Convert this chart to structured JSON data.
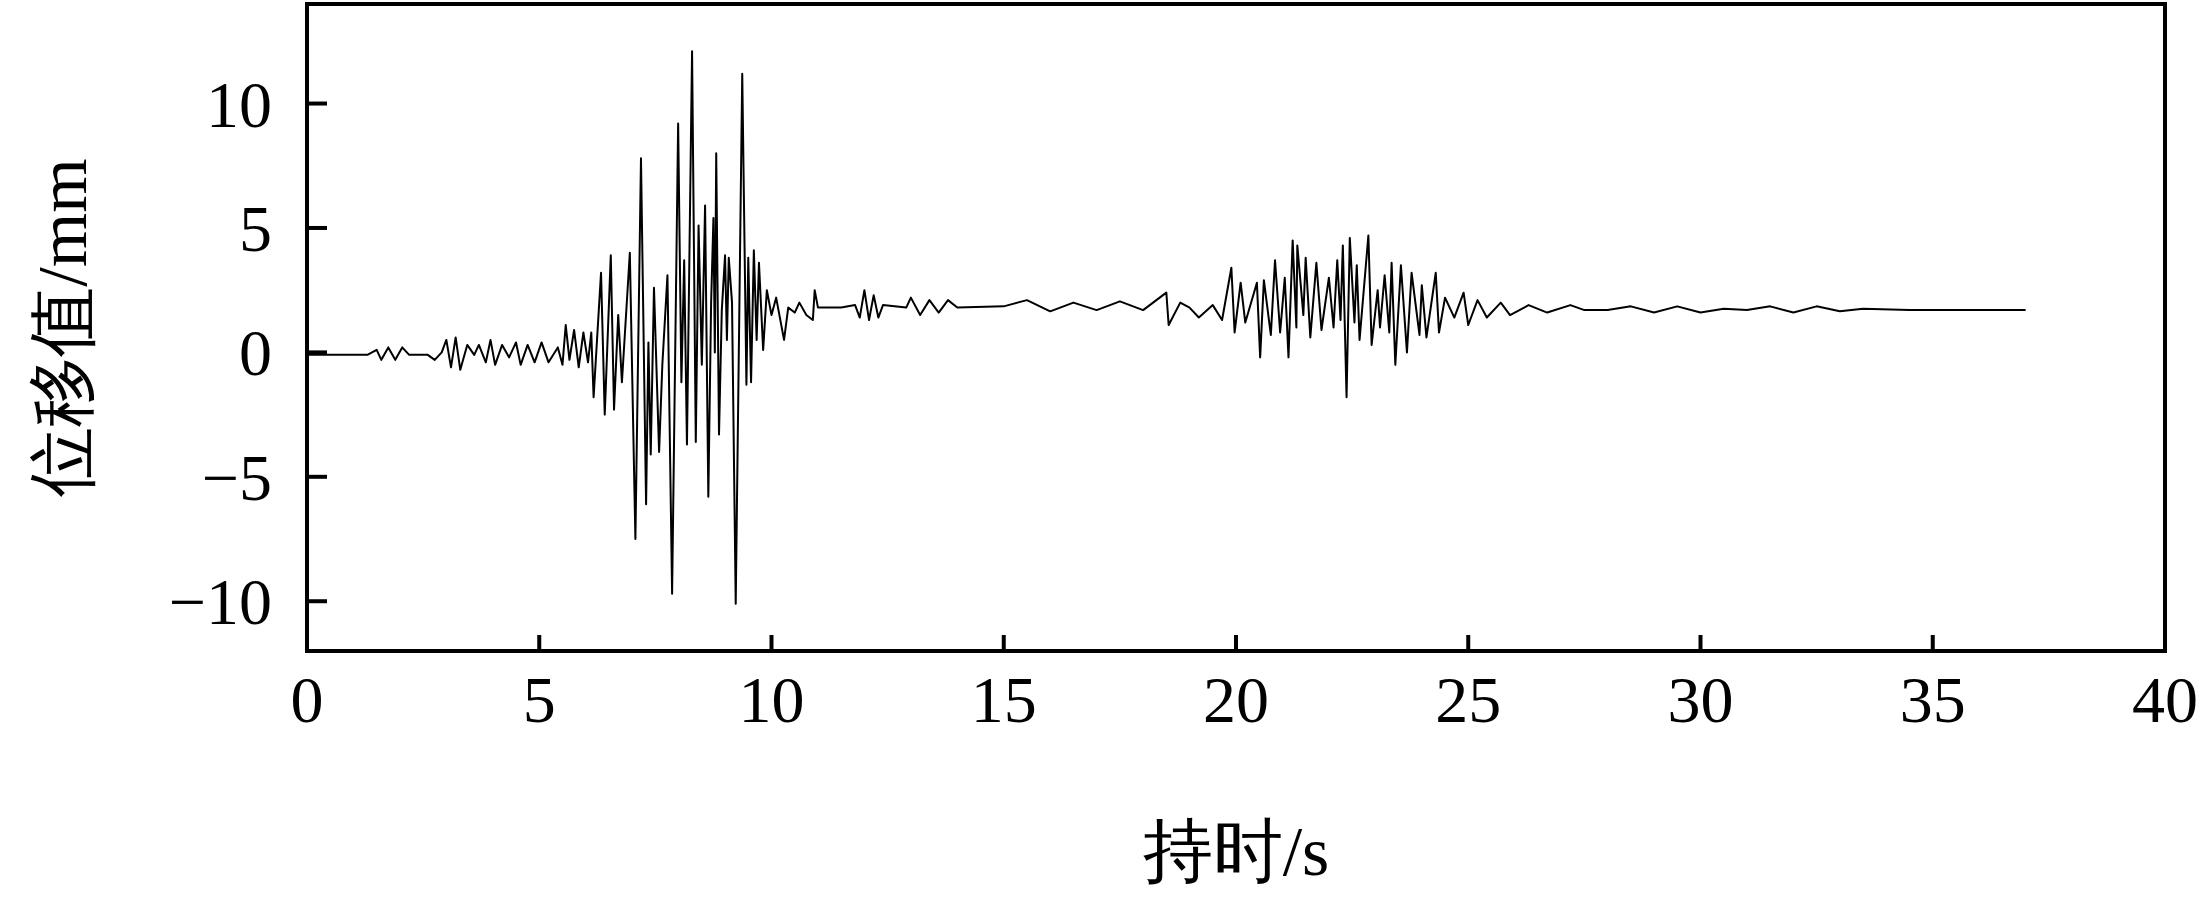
{
  "chart_data": {
    "type": "line",
    "xlabel": "持时/s",
    "ylabel": "位移值/mm",
    "color": "#000000",
    "xlim": [
      0,
      40
    ],
    "ylim": [
      -12,
      14
    ],
    "xticks": [
      0,
      5,
      10,
      15,
      20,
      25,
      30,
      35,
      40
    ],
    "yticks": [
      -10,
      -5,
      0,
      5,
      10
    ],
    "x": [
      0,
      1.3,
      1.5,
      1.6,
      1.75,
      1.9,
      2.05,
      2.2,
      2.6,
      2.75,
      2.9,
      3.0,
      3.1,
      3.2,
      3.3,
      3.45,
      3.6,
      3.7,
      3.85,
      3.95,
      4.05,
      4.2,
      4.35,
      4.5,
      4.6,
      4.75,
      4.9,
      5.05,
      5.2,
      5.4,
      5.5,
      5.57,
      5.65,
      5.75,
      5.85,
      5.95,
      6.05,
      6.12,
      6.17,
      6.33,
      6.41,
      6.54,
      6.61,
      6.7,
      6.78,
      6.95,
      7.07,
      7.19,
      7.3,
      7.35,
      7.4,
      7.47,
      7.58,
      7.65,
      7.76,
      7.86,
      7.99,
      8.06,
      8.12,
      8.18,
      8.29,
      8.37,
      8.43,
      8.5,
      8.57,
      8.64,
      8.7,
      8.75,
      8.78,
      8.81,
      8.87,
      8.93,
      9.0,
      9.04,
      9.08,
      9.15,
      9.23,
      9.37,
      9.46,
      9.5,
      9.56,
      9.62,
      9.68,
      9.73,
      9.82,
      9.9,
      10.0,
      10.1,
      10.27,
      10.36,
      10.5,
      10.6,
      10.75,
      10.89,
      10.93,
      11.0,
      11.5,
      11.8,
      11.9,
      12.0,
      12.1,
      12.2,
      12.3,
      12.4,
      12.9,
      13.0,
      13.2,
      13.4,
      13.6,
      13.8,
      14.0,
      15.0,
      15.5,
      16.0,
      16.5,
      17.0,
      17.5,
      18.0,
      18.5,
      18.55,
      18.8,
      19.0,
      19.2,
      19.5,
      19.7,
      19.9,
      19.97,
      20.1,
      20.2,
      20.45,
      20.52,
      20.6,
      20.75,
      20.84,
      20.95,
      21.05,
      21.13,
      21.22,
      21.3,
      21.32,
      21.45,
      21.5,
      21.6,
      21.73,
      21.84,
      22.0,
      22.1,
      22.18,
      22.25,
      22.3,
      22.38,
      22.45,
      22.55,
      22.6,
      22.66,
      22.85,
      22.92,
      23.05,
      23.1,
      23.2,
      23.3,
      23.35,
      23.43,
      23.55,
      23.68,
      23.78,
      23.95,
      24.0,
      24.1,
      24.3,
      24.37,
      24.5,
      24.7,
      24.9,
      25.0,
      25.2,
      25.4,
      25.7,
      25.9,
      26.3,
      26.7,
      27.2,
      27.5,
      28.0,
      28.5,
      29.0,
      29.5,
      30.0,
      30.5,
      31.0,
      31.5,
      32.0,
      32.5,
      33.0,
      33.5,
      34.5,
      37.0
    ],
    "values": [
      -0.1,
      -0.1,
      0.1,
      -0.3,
      0.2,
      -0.3,
      0.2,
      -0.1,
      -0.1,
      -0.3,
      0,
      0.5,
      -0.6,
      0.6,
      -0.7,
      0.3,
      -0.1,
      0.3,
      -0.4,
      0.5,
      -0.5,
      0.3,
      -0.2,
      0.4,
      -0.5,
      0.3,
      -0.4,
      0.4,
      -0.4,
      0.2,
      -0.5,
      1.1,
      -0.3,
      0.9,
      -0.6,
      0.8,
      -0.4,
      0.8,
      -1.8,
      3.2,
      -2.5,
      3.9,
      -2.3,
      1.5,
      -1.2,
      4.0,
      -7.5,
      7.8,
      -6.1,
      0.4,
      -4.1,
      2.6,
      -4.0,
      -0.5,
      3.1,
      -9.7,
      9.2,
      -1.2,
      3.7,
      -3.7,
      12.1,
      -3.6,
      5.1,
      -0.5,
      5.9,
      -5.8,
      2.0,
      5.4,
      0,
      8.0,
      -3.3,
      1.7,
      3.9,
      0.5,
      3.8,
      2.0,
      -10.1,
      11.2,
      -1.3,
      3.8,
      -1.2,
      4.1,
      0.5,
      3.6,
      0.1,
      2.5,
      1.5,
      2.2,
      0.5,
      1.8,
      1.6,
      2.0,
      1.5,
      1.3,
      2.5,
      1.8,
      1.8,
      1.9,
      1.4,
      2.5,
      1.3,
      2.3,
      1.4,
      1.9,
      1.8,
      2.2,
      1.5,
      2.1,
      1.6,
      2.1,
      1.8,
      1.85,
      2.1,
      1.65,
      2.0,
      1.7,
      2.05,
      1.7,
      2.4,
      1.1,
      2.0,
      1.8,
      1.4,
      1.9,
      1.3,
      3.4,
      0.8,
      2.8,
      1.2,
      2.8,
      -0.2,
      2.9,
      0.7,
      3.7,
      0.8,
      3.0,
      -0.2,
      4.5,
      1.0,
      4.3,
      1.5,
      3.8,
      0.6,
      3.6,
      0.9,
      3.0,
      1.0,
      3.7,
      1.3,
      4.3,
      -1.8,
      4.6,
      1.2,
      3.5,
      0.5,
      4.7,
      0.3,
      2.5,
      1.0,
      3.1,
      0.8,
      3.6,
      -0.5,
      3.5,
      0.0,
      3.2,
      0.7,
      2.7,
      0.6,
      3.2,
      0.8,
      2.2,
      1.4,
      2.4,
      1.1,
      2.1,
      1.4,
      2.0,
      1.5,
      1.9,
      1.6,
      1.9,
      1.7,
      1.7,
      1.85,
      1.6,
      1.85,
      1.6,
      1.75,
      1.7,
      1.85,
      1.6,
      1.85,
      1.65,
      1.75,
      1.7,
      1.7
    ]
  }
}
